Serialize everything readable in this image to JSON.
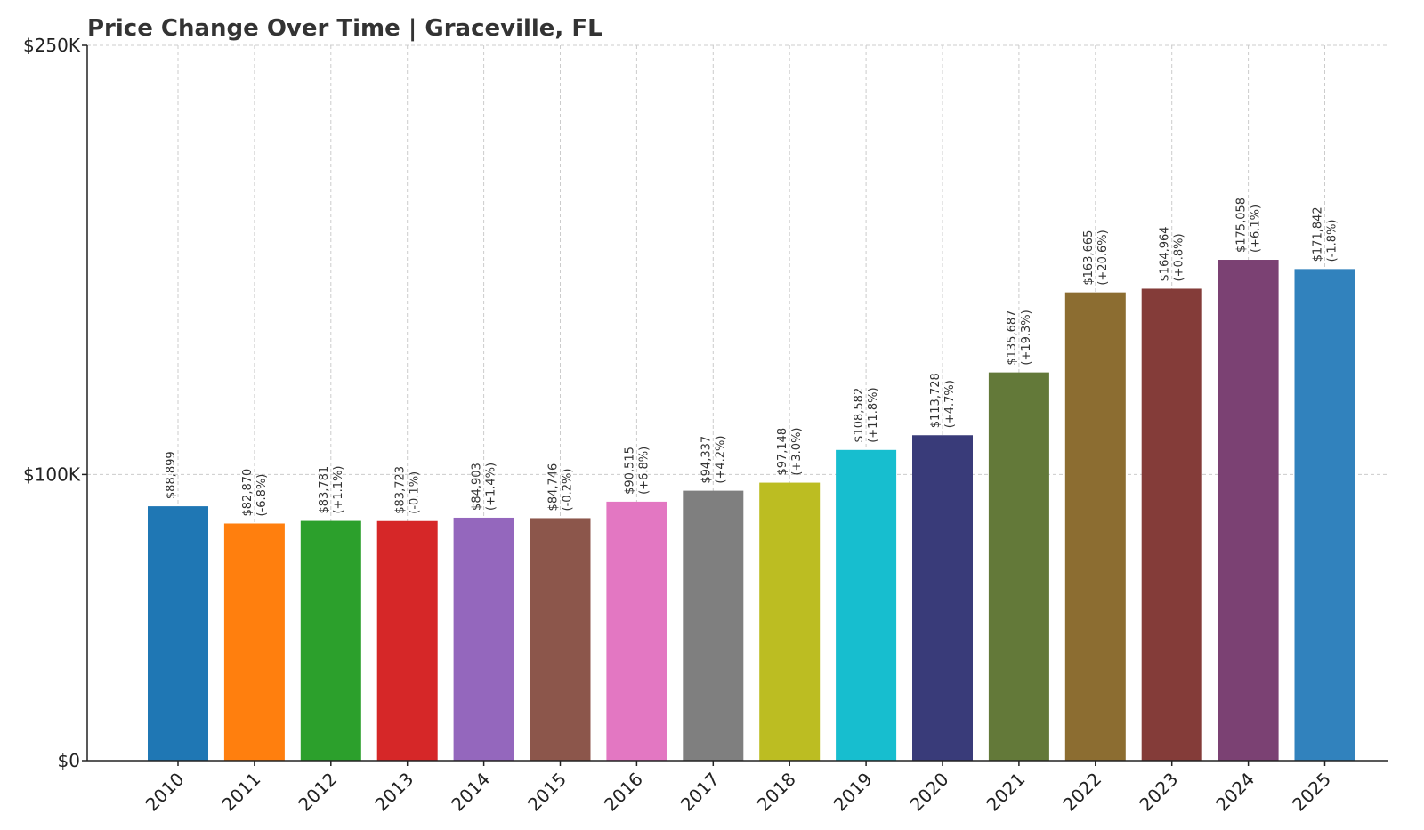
{
  "chart_data": {
    "type": "bar",
    "title": "Price Change Over Time | Graceville, FL",
    "xlabel": "",
    "ylabel": "",
    "ylim": [
      0,
      250000
    ],
    "yticks": [
      {
        "value": 0,
        "label": "$0"
      },
      {
        "value": 100000,
        "label": "$100K"
      },
      {
        "value": 250000,
        "label": "$250K"
      }
    ],
    "grid": true,
    "categories": [
      "2010",
      "2011",
      "2012",
      "2013",
      "2014",
      "2015",
      "2016",
      "2017",
      "2018",
      "2019",
      "2020",
      "2021",
      "2022",
      "2023",
      "2024",
      "2025"
    ],
    "values": [
      88899,
      82870,
      83781,
      83723,
      84903,
      84746,
      90515,
      94337,
      97148,
      108582,
      113728,
      135687,
      163665,
      164964,
      175058,
      171842
    ],
    "value_labels": [
      "$88,899",
      "$82,870",
      "$83,781",
      "$83,723",
      "$84,903",
      "$84,746",
      "$90,515",
      "$94,337",
      "$97,148",
      "$108,582",
      "$113,728",
      "$135,687",
      "$163,665",
      "$164,964",
      "$175,058",
      "$171,842"
    ],
    "change_labels": [
      "",
      "(-6.8%)",
      "(+1.1%)",
      "(-0.1%)",
      "(+1.4%)",
      "(-0.2%)",
      "(+6.8%)",
      "(+4.2%)",
      "(+3.0%)",
      "(+11.8%)",
      "(+4.7%)",
      "(+19.3%)",
      "(+20.6%)",
      "(+0.8%)",
      "(+6.1%)",
      "(-1.8%)"
    ],
    "colors": [
      "#1f77b4",
      "#ff7f0e",
      "#2ca02c",
      "#d62728",
      "#9467bd",
      "#8c564b",
      "#e377c2",
      "#7f7f7f",
      "#bcbd22",
      "#17becf",
      "#393b79",
      "#637939",
      "#8c6d31",
      "#843c39",
      "#7b4173",
      "#3182bd"
    ]
  }
}
